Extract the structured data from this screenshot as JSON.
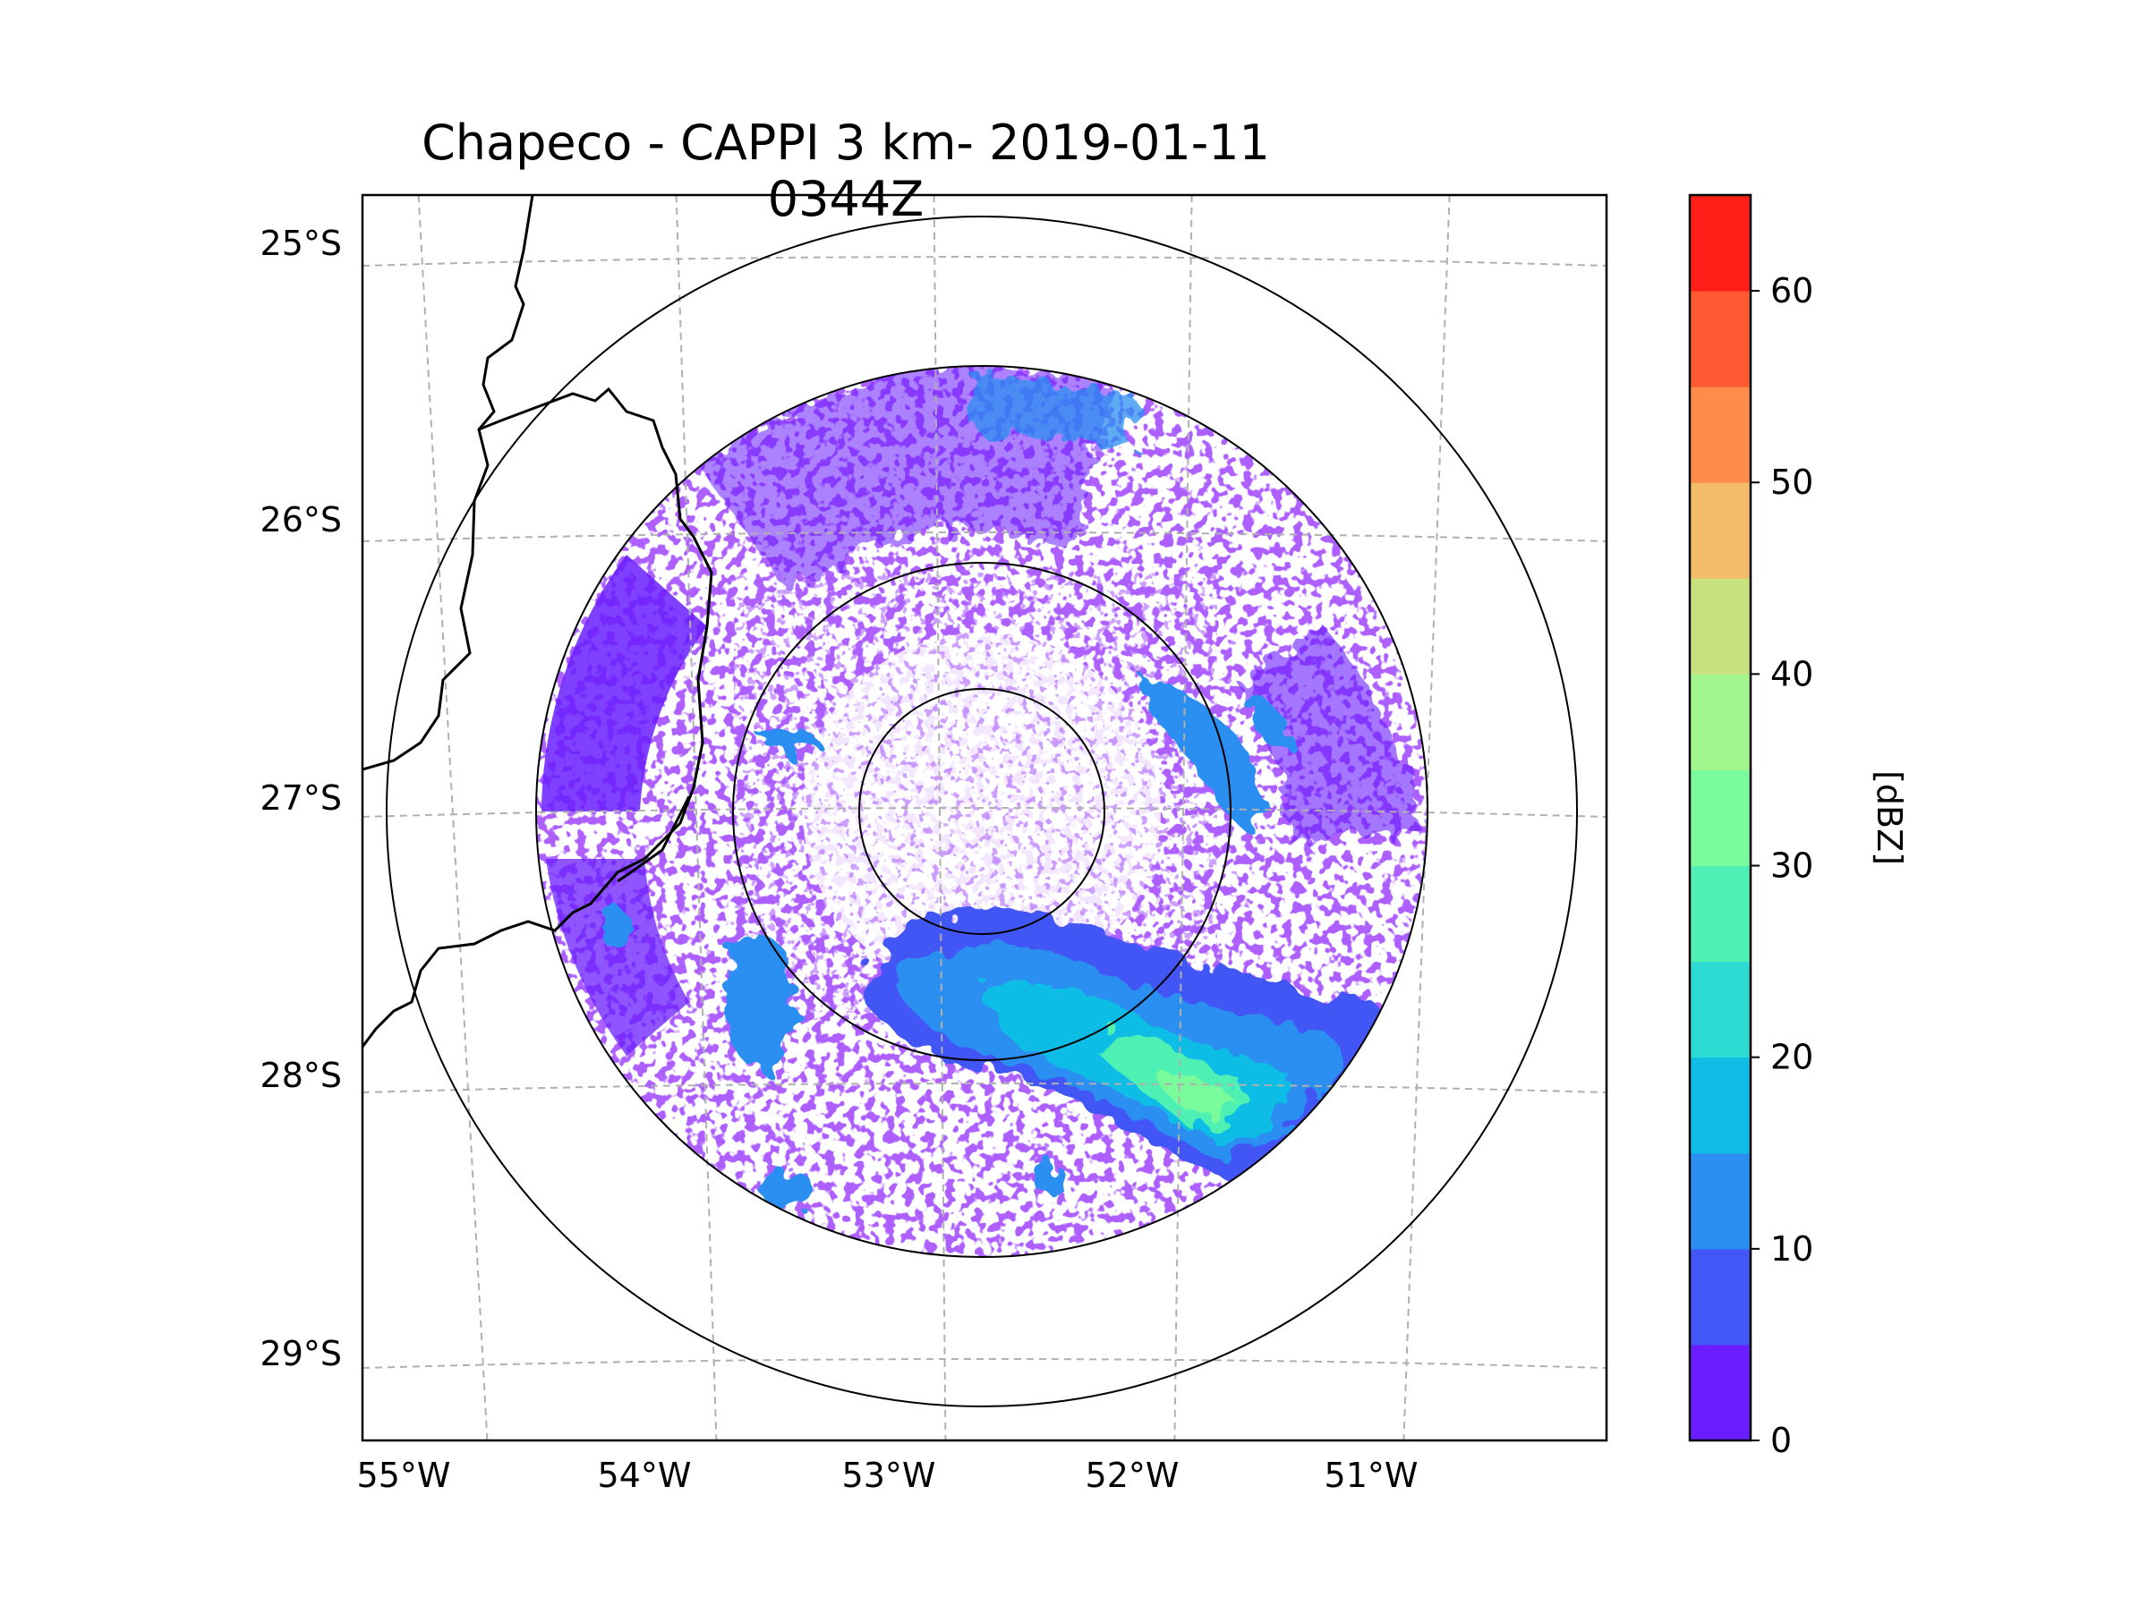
{
  "chart_data": {
    "type": "heatmap",
    "title": "Chapeco - CAPPI 3 km- 2019-01-11 0344Z",
    "xlabel": "",
    "ylabel": "",
    "x_ticks": [
      "55°W",
      "54°W",
      "53°W",
      "52°W",
      "51°W"
    ],
    "y_ticks": [
      "25°S",
      "26°S",
      "27°S",
      "28°S",
      "29°S"
    ],
    "lon_range": [
      -55.2,
      -50.1
    ],
    "lat_range": [
      -29.3,
      -24.8
    ],
    "radar_center": {
      "lon": -52.6,
      "lat": -27.03
    },
    "range_rings_km": [
      50,
      100,
      200,
      250
    ],
    "colorbar": {
      "label": "[dBZ]",
      "ticks": [
        "0",
        "10",
        "20",
        "30",
        "40",
        "50",
        "60"
      ],
      "min": 0,
      "max": 65,
      "step": 5,
      "colors": [
        "#6a1eff",
        "#4257f5",
        "#2a8ff0",
        "#0fbde6",
        "#2ddbd3",
        "#4ff0b4",
        "#79fb9c",
        "#a2f58c",
        "#c8e280",
        "#f2bd6a",
        "#ff8c4a",
        "#ff5a32",
        "#ff1f18"
      ]
    },
    "echo_regions": [
      {
        "name": "southern band",
        "dbz_range": [
          15,
          35
        ]
      },
      {
        "name": "northeast cells",
        "dbz_range": [
          10,
          20
        ]
      },
      {
        "name": "background clutter",
        "dbz_range": [
          0,
          10
        ]
      }
    ]
  }
}
